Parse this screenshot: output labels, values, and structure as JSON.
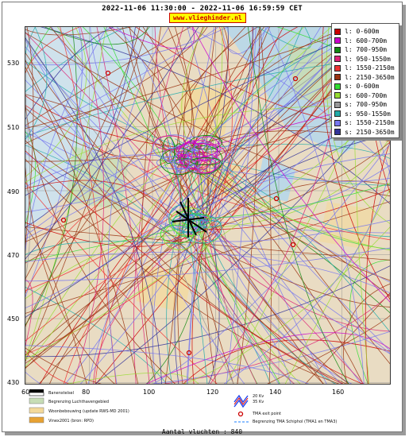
{
  "header": {
    "title": "2022-11-06 11:30:00 - 2022-11-06 16:59:59 CET",
    "site": "www.vlieghinder.nl"
  },
  "axes": {
    "y_ticks": [
      "530",
      "510",
      "490",
      "470",
      "450",
      "430"
    ],
    "x_ticks": [
      "60",
      "80",
      "100",
      "120",
      "140",
      "160"
    ]
  },
  "legend": {
    "items": [
      {
        "label": "l: 0-600m",
        "color": "#cc0000"
      },
      {
        "label": "l: 600-700m",
        "color": "#cc00cc"
      },
      {
        "label": "l: 700-950m",
        "color": "#118811"
      },
      {
        "label": "l: 950-1550m",
        "color": "#dd2277"
      },
      {
        "label": "l: 1550-2150m",
        "color": "#ee3333"
      },
      {
        "label": "l: 2150-3650m",
        "color": "#993311"
      },
      {
        "label": "s: 0-600m",
        "color": "#33dd33"
      },
      {
        "label": "s: 600-700m",
        "color": "#99dd33"
      },
      {
        "label": "s: 700-950m",
        "color": "#999999"
      },
      {
        "label": "s: 950-1550m",
        "color": "#22aaaa"
      },
      {
        "label": "s: 1550-2150m",
        "color": "#7777ee"
      },
      {
        "label": "s: 2150-3650m",
        "color": "#333399"
      }
    ]
  },
  "footer": {
    "scale_label": "Banenstelsel",
    "luchthaven": "Begrenzing Luchthavengebied",
    "woonbebouwing": "Woonbebouwing (update RWS-MD 2001)",
    "vinex": "Vinex2001 (bron: RPD)",
    "kv_20": "20 Kv",
    "kv_35": "35 Kv",
    "tma_exit": "TMA exit point",
    "tma_border": "Begrenzing TMA Schiphol  (TMA1 en TMA3)"
  },
  "summary": {
    "count_text": "Aantal vluchten : 840"
  },
  "colors": {
    "map_bg": "#e9dcc3",
    "water": "#a9cde0",
    "green": "#c7ddb6",
    "yellow": "#f3d99a"
  }
}
